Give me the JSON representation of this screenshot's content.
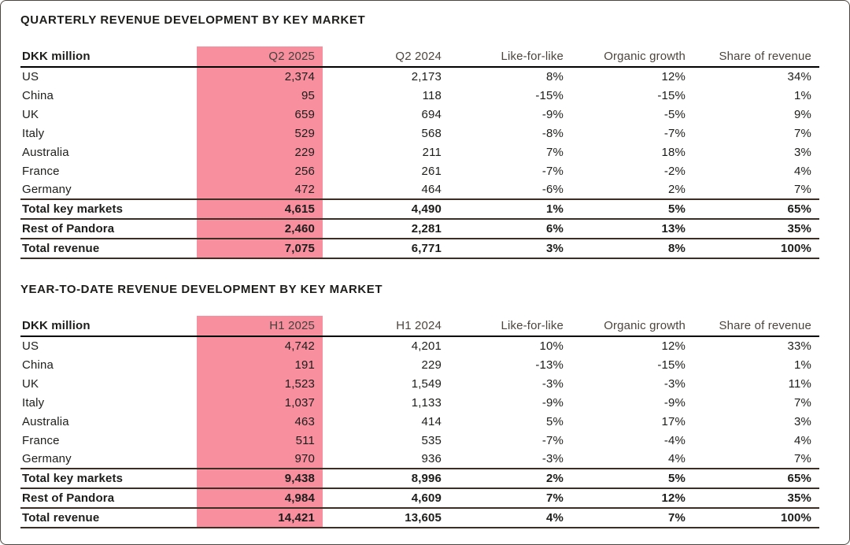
{
  "colors": {
    "highlight_pink": "#f78f9e",
    "text_primary": "#1d1d1b",
    "header_text_muted": "#4c453e",
    "header_rule": "#000000",
    "total_rule": "#3c2e24",
    "page_border": "#4c463f"
  },
  "sections": [
    {
      "title": "QUARTERLY REVENUE DEVELOPMENT BY KEY MARKET",
      "columns": [
        "DKK million",
        "Q2 2025",
        "Q2 2024",
        "Like-for-like",
        "Organic growth",
        "Share of revenue"
      ],
      "rows": [
        {
          "type": "market",
          "label": "US",
          "values": [
            "2,374",
            "2,173",
            "8%",
            "12%",
            "34%"
          ]
        },
        {
          "type": "market",
          "label": "China",
          "values": [
            "95",
            "118",
            "-15%",
            "-15%",
            "1%"
          ]
        },
        {
          "type": "market",
          "label": "UK",
          "values": [
            "659",
            "694",
            "-9%",
            "-5%",
            "9%"
          ]
        },
        {
          "type": "market",
          "label": "Italy",
          "values": [
            "529",
            "568",
            "-8%",
            "-7%",
            "7%"
          ]
        },
        {
          "type": "market",
          "label": "Australia",
          "values": [
            "229",
            "211",
            "7%",
            "18%",
            "3%"
          ]
        },
        {
          "type": "market",
          "label": "France",
          "values": [
            "256",
            "261",
            "-7%",
            "-2%",
            "4%"
          ]
        },
        {
          "type": "market",
          "label": "Germany",
          "values": [
            "472",
            "464",
            "-6%",
            "2%",
            "7%"
          ]
        },
        {
          "type": "total",
          "label": "Total key markets",
          "values": [
            "4,615",
            "4,490",
            "1%",
            "5%",
            "65%"
          ]
        },
        {
          "type": "total",
          "label": "Rest of Pandora",
          "values": [
            "2,460",
            "2,281",
            "6%",
            "13%",
            "35%"
          ]
        },
        {
          "type": "total",
          "label": "Total revenue",
          "values": [
            "7,075",
            "6,771",
            "3%",
            "8%",
            "100%"
          ]
        }
      ]
    },
    {
      "title": "YEAR-TO-DATE REVENUE DEVELOPMENT BY KEY MARKET",
      "columns": [
        "DKK million",
        "H1 2025",
        "H1 2024",
        "Like-for-like",
        "Organic growth",
        "Share of revenue"
      ],
      "rows": [
        {
          "type": "market",
          "label": "US",
          "values": [
            "4,742",
            "4,201",
            "10%",
            "12%",
            "33%"
          ]
        },
        {
          "type": "market",
          "label": "China",
          "values": [
            "191",
            "229",
            "-13%",
            "-15%",
            "1%"
          ]
        },
        {
          "type": "market",
          "label": "UK",
          "values": [
            "1,523",
            "1,549",
            "-3%",
            "-3%",
            "11%"
          ]
        },
        {
          "type": "market",
          "label": "Italy",
          "values": [
            "1,037",
            "1,133",
            "-9%",
            "-9%",
            "7%"
          ]
        },
        {
          "type": "market",
          "label": "Australia",
          "values": [
            "463",
            "414",
            "5%",
            "17%",
            "3%"
          ]
        },
        {
          "type": "market",
          "label": "France",
          "values": [
            "511",
            "535",
            "-7%",
            "-4%",
            "4%"
          ]
        },
        {
          "type": "market",
          "label": "Germany",
          "values": [
            "970",
            "936",
            "-3%",
            "4%",
            "7%"
          ]
        },
        {
          "type": "total",
          "label": "Total key markets",
          "values": [
            "9,438",
            "8,996",
            "2%",
            "5%",
            "65%"
          ]
        },
        {
          "type": "total",
          "label": "Rest of Pandora",
          "values": [
            "4,984",
            "4,609",
            "7%",
            "12%",
            "35%"
          ]
        },
        {
          "type": "total",
          "label": "Total revenue",
          "values": [
            "14,421",
            "13,605",
            "4%",
            "7%",
            "100%"
          ]
        }
      ]
    }
  ]
}
